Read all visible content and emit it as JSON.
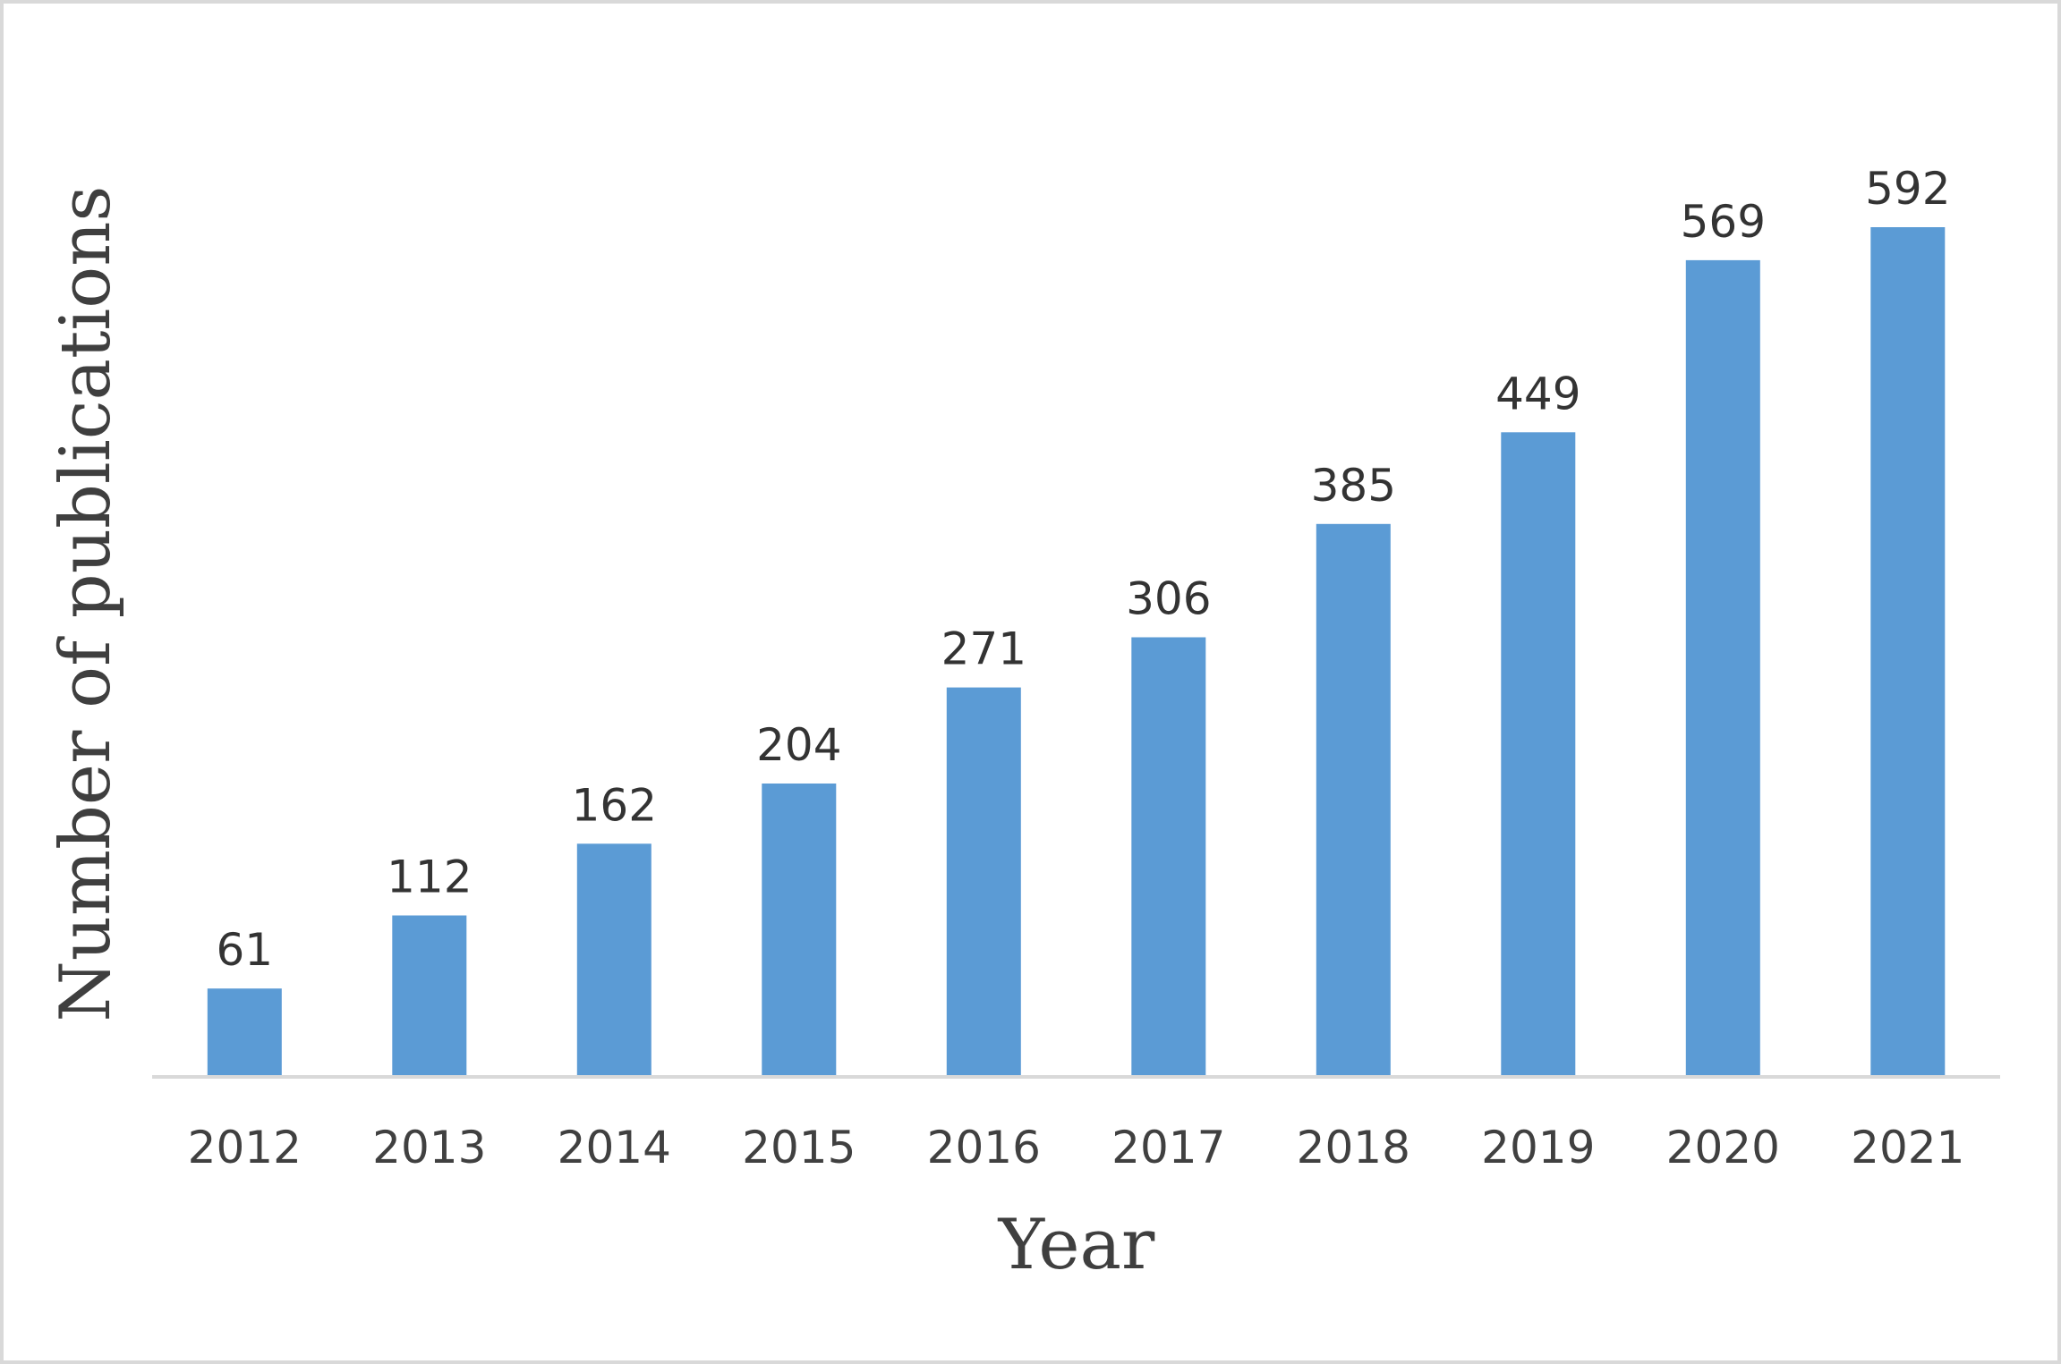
{
  "chart_data": {
    "type": "bar",
    "title": "",
    "xlabel": "Year",
    "ylabel": "Number of publications",
    "categories": [
      "2012",
      "2013",
      "2014",
      "2015",
      "2016",
      "2017",
      "2018",
      "2019",
      "2020",
      "2021"
    ],
    "values": [
      61,
      112,
      162,
      204,
      271,
      306,
      385,
      449,
      569,
      592
    ],
    "data_labels": [
      "61",
      "112",
      "162",
      "204",
      "271",
      "306",
      "385",
      "449",
      "569",
      "592"
    ],
    "ylim": [
      0,
      600
    ],
    "grid": false,
    "legend": "none",
    "bar_color": "#5b9bd5"
  }
}
